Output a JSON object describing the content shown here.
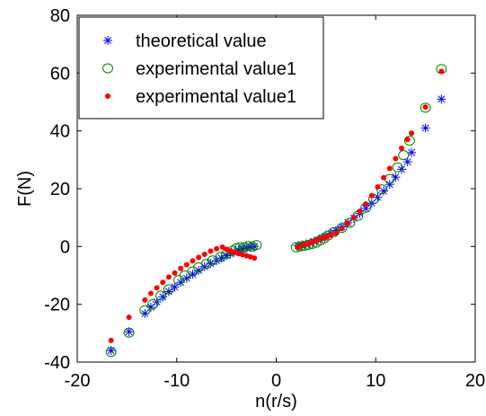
{
  "chart_data": {
    "type": "scatter",
    "xlabel": "n(r/s)",
    "ylabel": "F(N)",
    "xlim": [
      -20,
      20
    ],
    "ylim": [
      -40,
      80
    ],
    "xticks": [
      -20,
      -10,
      0,
      10,
      20
    ],
    "yticks": [
      -40,
      -20,
      0,
      20,
      40,
      60,
      80
    ],
    "grid": false,
    "legend_position": "top-left",
    "series": [
      {
        "name": "theoretical value",
        "marker": "asterisk",
        "color": "#0000ff",
        "points": [
          [
            -16.6,
            -36.0
          ],
          [
            -14.8,
            -29.5
          ],
          [
            -13.2,
            -23.2
          ],
          [
            -12.6,
            -21.0
          ],
          [
            -12.0,
            -19.2
          ],
          [
            -11.4,
            -17.4
          ],
          [
            -10.8,
            -15.6
          ],
          [
            -10.2,
            -14.0
          ],
          [
            -9.6,
            -12.4
          ],
          [
            -9.0,
            -11.0
          ],
          [
            -8.4,
            -9.6
          ],
          [
            -7.8,
            -8.3
          ],
          [
            -7.2,
            -7.0
          ],
          [
            -6.6,
            -5.9
          ],
          [
            -6.0,
            -4.9
          ],
          [
            -5.5,
            -4.0
          ],
          [
            -5.0,
            -3.1
          ],
          [
            -4.6,
            -2.5
          ],
          [
            -4.2,
            -1.8
          ],
          [
            -3.8,
            -1.2
          ],
          [
            -3.4,
            -0.8
          ],
          [
            -3.0,
            -0.5
          ],
          [
            -2.6,
            -0.2
          ],
          [
            -2.2,
            0.0
          ],
          [
            2.2,
            0.3
          ],
          [
            2.6,
            0.5
          ],
          [
            3.0,
            0.8
          ],
          [
            3.4,
            1.2
          ],
          [
            3.8,
            1.7
          ],
          [
            4.2,
            2.3
          ],
          [
            4.6,
            2.9
          ],
          [
            5.0,
            3.6
          ],
          [
            5.5,
            4.5
          ],
          [
            6.0,
            5.5
          ],
          [
            6.6,
            6.8
          ],
          [
            7.2,
            8.2
          ],
          [
            7.8,
            9.8
          ],
          [
            8.4,
            11.4
          ],
          [
            9.0,
            13.2
          ],
          [
            9.6,
            15.0
          ],
          [
            10.2,
            17.0
          ],
          [
            10.8,
            19.2
          ],
          [
            11.4,
            21.5
          ],
          [
            12.0,
            24.0
          ],
          [
            12.6,
            26.7
          ],
          [
            13.2,
            29.3
          ],
          [
            13.6,
            32.5
          ],
          [
            15.0,
            41.0
          ],
          [
            16.6,
            51.0
          ]
        ]
      },
      {
        "name": "experimental value1",
        "marker": "circle",
        "color": "#008000",
        "points": [
          [
            -16.6,
            -36.5
          ],
          [
            -14.8,
            -29.8
          ],
          [
            -13.2,
            -22.0
          ],
          [
            -12.4,
            -20.0
          ],
          [
            -11.6,
            -17.0
          ],
          [
            -10.8,
            -14.8
          ],
          [
            -9.8,
            -11.6
          ],
          [
            -9.2,
            -10.0
          ],
          [
            -8.4,
            -8.6
          ],
          [
            -7.8,
            -7.2
          ],
          [
            -7.0,
            -6.0
          ],
          [
            -6.4,
            -4.8
          ],
          [
            -5.6,
            -3.6
          ],
          [
            -5.0,
            -2.6
          ],
          [
            -4.4,
            -1.4
          ],
          [
            -4.0,
            -0.6
          ],
          [
            -3.6,
            -0.2
          ],
          [
            -3.2,
            -0.3
          ],
          [
            -2.8,
            0.2
          ],
          [
            -2.4,
            -0.1
          ],
          [
            -2.0,
            0.5
          ],
          [
            2.0,
            -0.3
          ],
          [
            2.4,
            0.0
          ],
          [
            2.8,
            0.2
          ],
          [
            3.2,
            0.5
          ],
          [
            3.6,
            0.9
          ],
          [
            4.0,
            1.3
          ],
          [
            4.4,
            2.0
          ],
          [
            4.8,
            2.8
          ],
          [
            5.2,
            3.8
          ],
          [
            5.8,
            5.0
          ],
          [
            6.6,
            6.4
          ],
          [
            7.4,
            8.2
          ],
          [
            8.2,
            10.6
          ],
          [
            9.0,
            13.4
          ],
          [
            9.8,
            16.4
          ],
          [
            10.6,
            19.8
          ],
          [
            11.4,
            23.4
          ],
          [
            12.2,
            27.4
          ],
          [
            12.8,
            31.6
          ],
          [
            13.4,
            36.6
          ],
          [
            15.0,
            48.0
          ],
          [
            16.6,
            61.4
          ]
        ]
      },
      {
        "name": "experimental value1",
        "marker": "dot",
        "color": "#ff0000",
        "points": [
          [
            -16.6,
            -32.5
          ],
          [
            -14.8,
            -24.5
          ],
          [
            -13.2,
            -18.5
          ],
          [
            -12.6,
            -16.2
          ],
          [
            -12.0,
            -14.3
          ],
          [
            -11.4,
            -12.4
          ],
          [
            -10.8,
            -10.6
          ],
          [
            -10.2,
            -9.2
          ],
          [
            -9.6,
            -7.6
          ],
          [
            -9.0,
            -6.3
          ],
          [
            -8.4,
            -5.0
          ],
          [
            -7.8,
            -3.8
          ],
          [
            -7.2,
            -2.7
          ],
          [
            -6.6,
            -1.6
          ],
          [
            -6.0,
            -0.8
          ],
          [
            -5.4,
            -0.2
          ],
          [
            -5.0,
            -1.0
          ],
          [
            -4.6,
            -1.5
          ],
          [
            -4.2,
            -2.0
          ],
          [
            -3.8,
            -2.5
          ],
          [
            -3.4,
            -2.8
          ],
          [
            -3.0,
            -3.2
          ],
          [
            -2.6,
            -3.6
          ],
          [
            -2.2,
            -4.0
          ],
          [
            2.2,
            -0.3
          ],
          [
            2.6,
            0.3
          ],
          [
            3.0,
            0.8
          ],
          [
            3.4,
            1.3
          ],
          [
            3.8,
            1.8
          ],
          [
            4.2,
            2.3
          ],
          [
            4.6,
            2.8
          ],
          [
            5.0,
            3.3
          ],
          [
            5.5,
            3.9
          ],
          [
            6.0,
            4.6
          ],
          [
            6.6,
            6.2
          ],
          [
            7.2,
            8.0
          ],
          [
            7.8,
            10.0
          ],
          [
            8.4,
            12.2
          ],
          [
            9.0,
            14.7
          ],
          [
            9.6,
            17.6
          ],
          [
            10.2,
            20.6
          ],
          [
            10.8,
            23.8
          ],
          [
            11.4,
            27.0
          ],
          [
            12.0,
            30.4
          ],
          [
            12.6,
            34.0
          ],
          [
            13.2,
            37.0
          ],
          [
            13.6,
            39.2
          ],
          [
            15.0,
            48.2
          ],
          [
            16.6,
            60.6
          ]
        ]
      }
    ]
  }
}
